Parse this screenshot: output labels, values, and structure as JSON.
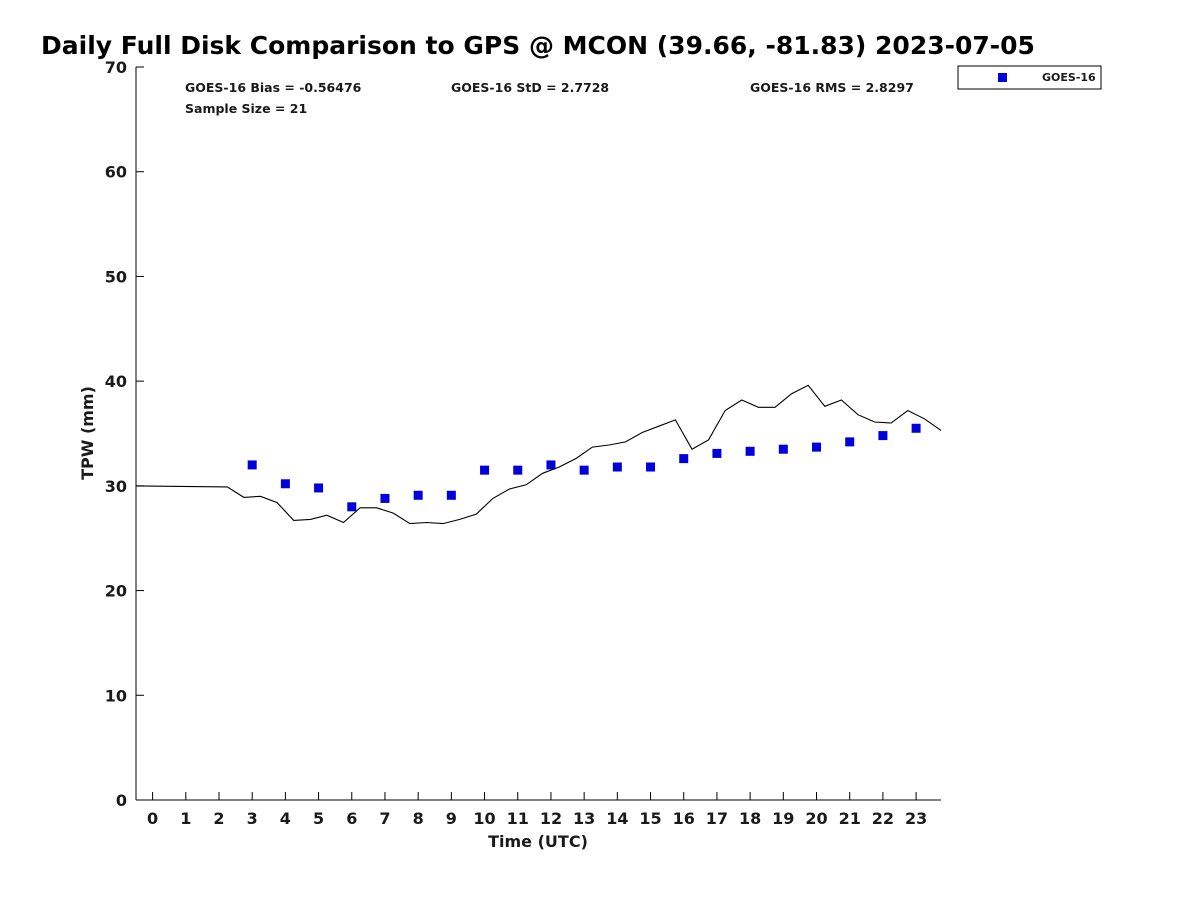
{
  "chart_data": {
    "type": "scatter",
    "title": "Daily Full Disk Comparison to GPS @ MCON (39.66, -81.83) 2023-07-05",
    "xlabel": "Time (UTC)",
    "ylabel": "TPW (mm)",
    "xlim": [
      -0.5,
      23.75
    ],
    "ylim": [
      0,
      70
    ],
    "x_ticks": [
      0,
      1,
      2,
      3,
      4,
      5,
      6,
      7,
      8,
      9,
      10,
      11,
      12,
      13,
      14,
      15,
      16,
      17,
      18,
      19,
      20,
      21,
      22,
      23
    ],
    "y_ticks": [
      0,
      10,
      20,
      30,
      40,
      50,
      60,
      70
    ],
    "grid": false,
    "legend": {
      "position": "top-right, outside plot",
      "entries": [
        "GOES-16"
      ]
    },
    "stats": {
      "bias": "GOES-16 Bias = -0.56476",
      "std": "GOES-16 StD = 2.7728",
      "rms": "GOES-16 RMS = 2.8297",
      "sample": "Sample Size = 21"
    },
    "series": [
      {
        "name": "GOES-16",
        "kind": "scatter",
        "marker": "square",
        "color": "#0000dd",
        "points": [
          [
            3,
            32.0
          ],
          [
            4,
            30.2
          ],
          [
            5,
            29.8
          ],
          [
            6,
            28.0
          ],
          [
            7,
            28.8
          ],
          [
            8,
            29.1
          ],
          [
            9,
            29.1
          ],
          [
            10,
            31.5
          ],
          [
            11,
            31.5
          ],
          [
            12,
            32.0
          ],
          [
            13,
            31.5
          ],
          [
            14,
            31.8
          ],
          [
            15,
            31.8
          ],
          [
            16,
            32.6
          ],
          [
            17,
            33.1
          ],
          [
            18,
            33.3
          ],
          [
            19,
            33.5
          ],
          [
            20,
            33.7
          ],
          [
            21,
            34.2
          ],
          [
            22,
            34.8
          ],
          [
            23,
            35.5
          ]
        ]
      },
      {
        "kind": "line",
        "color": "#000000",
        "points": [
          [
            -0.5,
            30.0
          ],
          [
            2.25,
            29.9
          ],
          [
            2.75,
            28.9
          ],
          [
            3.25,
            29.0
          ],
          [
            3.75,
            28.4
          ],
          [
            4.25,
            26.7
          ],
          [
            4.75,
            26.8
          ],
          [
            5.25,
            27.2
          ],
          [
            5.75,
            26.5
          ],
          [
            6.25,
            27.9
          ],
          [
            6.75,
            27.9
          ],
          [
            7.25,
            27.4
          ],
          [
            7.75,
            26.4
          ],
          [
            8.25,
            26.5
          ],
          [
            8.75,
            26.4
          ],
          [
            9.25,
            26.8
          ],
          [
            9.75,
            27.3
          ],
          [
            10.25,
            28.8
          ],
          [
            10.75,
            29.7
          ],
          [
            11.25,
            30.1
          ],
          [
            11.75,
            31.2
          ],
          [
            12.25,
            31.8
          ],
          [
            12.75,
            32.6
          ],
          [
            13.25,
            33.7
          ],
          [
            13.75,
            33.9
          ],
          [
            14.25,
            34.2
          ],
          [
            14.75,
            35.1
          ],
          [
            15.25,
            35.7
          ],
          [
            15.75,
            36.3
          ],
          [
            16.25,
            33.5
          ],
          [
            16.75,
            34.4
          ],
          [
            17.25,
            37.2
          ],
          [
            17.75,
            38.2
          ],
          [
            18.25,
            37.5
          ],
          [
            18.75,
            37.5
          ],
          [
            19.25,
            38.8
          ],
          [
            19.75,
            39.6
          ],
          [
            20.25,
            37.6
          ],
          [
            20.75,
            38.2
          ],
          [
            21.25,
            36.8
          ],
          [
            21.75,
            36.1
          ],
          [
            22.25,
            36.0
          ],
          [
            22.75,
            37.2
          ],
          [
            23.25,
            36.4
          ],
          [
            23.75,
            35.3
          ]
        ]
      }
    ]
  }
}
